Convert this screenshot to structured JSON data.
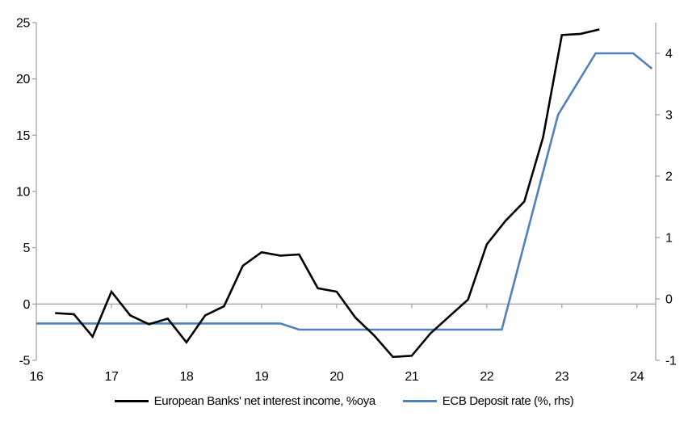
{
  "chart_data": {
    "type": "line",
    "x_axis": {
      "ticks": [
        16,
        17,
        18,
        19,
        20,
        21,
        22,
        23,
        24
      ],
      "range": [
        16,
        24.25
      ]
    },
    "left_axis": {
      "ticks": [
        -5,
        0,
        5,
        10,
        15,
        20,
        25
      ],
      "range": [
        -5,
        25
      ]
    },
    "right_axis": {
      "ticks": [
        -1,
        0,
        1,
        2,
        3,
        4
      ],
      "range": [
        -1,
        4.5
      ]
    },
    "grid": "zero-line-only",
    "legend_position": "bottom-center",
    "series": [
      {
        "name": "European Banks' net interest income, %oya",
        "axis": "left",
        "color": "#000000",
        "x": [
          16.25,
          16.5,
          16.75,
          17.0,
          17.25,
          17.5,
          17.75,
          18.0,
          18.25,
          18.5,
          18.75,
          19.0,
          19.25,
          19.5,
          19.75,
          20.0,
          20.25,
          20.5,
          20.75,
          21.0,
          21.25,
          21.5,
          21.75,
          22.0,
          22.25,
          22.5,
          22.75,
          23.0,
          23.25,
          23.5
        ],
        "values": [
          -0.8,
          -0.9,
          -2.9,
          1.1,
          -1.0,
          -1.8,
          -1.3,
          -3.4,
          -1.0,
          -0.2,
          3.4,
          4.6,
          4.3,
          4.4,
          1.4,
          1.1,
          -1.2,
          -2.8,
          -4.7,
          -4.6,
          -2.6,
          -1.1,
          0.4,
          5.3,
          7.4,
          9.1,
          14.8,
          23.9,
          24.0,
          24.4
        ]
      },
      {
        "name": "ECB Deposit rate (%, rhs)",
        "axis": "right",
        "color": "#4f81bd",
        "x": [
          16.0,
          19.25,
          19.5,
          22.2,
          22.95,
          23.45,
          23.95,
          24.2
        ],
        "values": [
          -0.4,
          -0.4,
          -0.5,
          -0.5,
          3.0,
          4.0,
          4.0,
          3.75
        ]
      }
    ]
  },
  "colors": {
    "axis": "#a6a6a6",
    "text": "#000000",
    "background": "#ffffff"
  }
}
